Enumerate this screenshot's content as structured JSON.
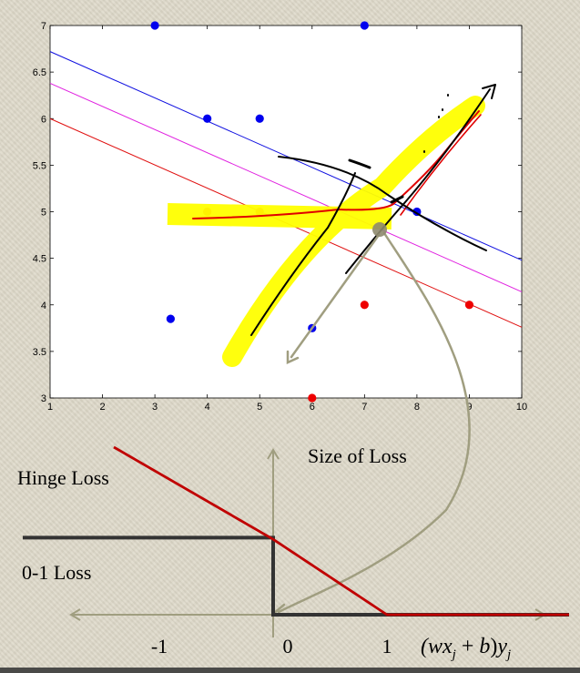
{
  "chart_data": [
    {
      "type": "scatter",
      "xlim": [
        1,
        10
      ],
      "ylim": [
        3,
        7
      ],
      "x_ticks": [
        1,
        2,
        3,
        4,
        5,
        6,
        7,
        8,
        9,
        10
      ],
      "y_ticks": [
        3,
        3.5,
        4,
        4.5,
        5,
        5.5,
        6,
        6.5,
        7
      ],
      "y_tick_labels": [
        "3",
        "3.5",
        "4",
        "4.5",
        "5",
        "5.5",
        "6",
        "6.5",
        "7"
      ],
      "grid": false,
      "series": [
        {
          "color": "#0000ee",
          "points": [
            [
              3,
              7
            ],
            [
              7,
              7
            ],
            [
              4,
              6
            ],
            [
              5,
              6
            ],
            [
              3.3,
              3.85
            ],
            [
              6,
              3.75
            ],
            [
              8,
              5
            ]
          ]
        },
        {
          "color": "#ee0000",
          "points": [
            [
              4,
              5
            ],
            [
              5,
              5
            ],
            [
              6,
              3
            ],
            [
              7,
              4
            ],
            [
              9,
              4
            ]
          ]
        }
      ],
      "lines": [
        {
          "color": "#1010e0",
          "points": [
            [
              1,
              6.72
            ],
            [
              10,
              4.48
            ]
          ]
        },
        {
          "color": "#e020e0",
          "points": [
            [
              1,
              6.38
            ],
            [
              10,
              4.14
            ]
          ]
        },
        {
          "color": "#e01010",
          "points": [
            [
              1,
              6.0
            ],
            [
              10,
              3.76
            ]
          ]
        }
      ]
    },
    {
      "type": "line",
      "xlim": [
        -2.2,
        2.8
      ],
      "x_ticks": [
        -1,
        0,
        1
      ],
      "x_tick_labels": [
        "-1",
        "0",
        "1"
      ],
      "y_axis_title": "Size of Loss",
      "x_axis_title": "(wx_j + b)y_j",
      "series": [
        {
          "name": "Hinge Loss",
          "color": "#c00000",
          "points": [
            [
              -1.4,
              2.0
            ],
            [
              0,
              0.9
            ],
            [
              1,
              0
            ],
            [
              2.6,
              0
            ]
          ]
        },
        {
          "name": "0-1 Loss",
          "color": "#333333",
          "points": [
            [
              -2.2,
              0.92
            ],
            [
              0,
              0.92
            ],
            [
              0,
              0
            ],
            [
              2.6,
              0
            ]
          ]
        }
      ]
    }
  ]
}
